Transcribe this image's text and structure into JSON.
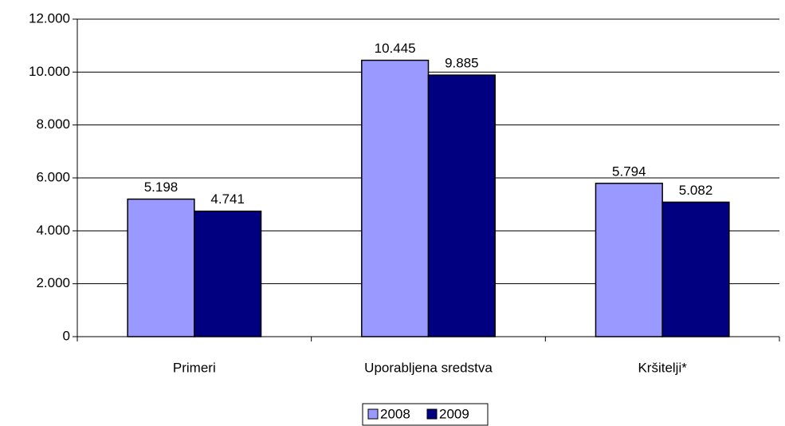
{
  "chart_data": {
    "type": "bar",
    "categories": [
      "Primeri",
      "Uporabljena sredstva",
      "Kršitelji*"
    ],
    "series": [
      {
        "name": "2008",
        "color": "#9999ff",
        "values": [
          5198,
          10445,
          5794
        ],
        "value_labels": [
          "5.198",
          "10.445",
          "5.794"
        ]
      },
      {
        "name": "2009",
        "color": "#000080",
        "values": [
          4741,
          9885,
          5082
        ],
        "value_labels": [
          "4.741",
          "9.885",
          "5.082"
        ]
      }
    ],
    "ylim": [
      0,
      12000
    ],
    "yticks": [
      0,
      {
        "value": 2000,
        "label": "2.000"
      },
      {
        "value": 4000,
        "label": "4.000"
      },
      {
        "value": 6000,
        "label": "6.000"
      },
      {
        "value": 8000,
        "label": "8.000"
      },
      {
        "value": 10000,
        "label": "10.000"
      },
      {
        "value": 12000,
        "label": "12.000"
      }
    ],
    "grid": true,
    "legend": "bottom"
  }
}
